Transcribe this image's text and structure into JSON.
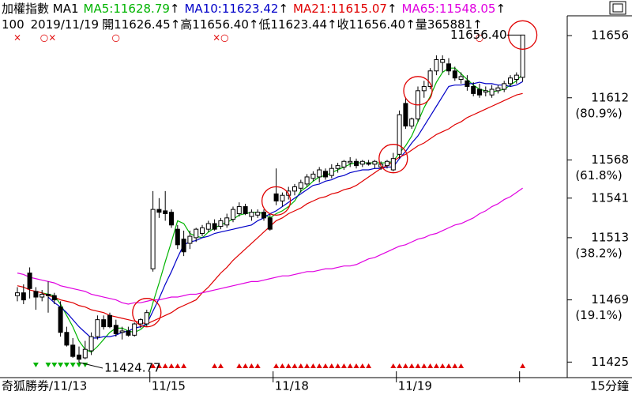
{
  "header": {
    "index_name": "加權指數 MA1",
    "separator": ":",
    "arrow": "↑",
    "time": "100",
    "date": "2019/11/19",
    "labels": {
      "open": "開",
      "high": "高",
      "low": "低",
      "close": "收",
      "volume": "量"
    },
    "volume": 365881
  },
  "chart_data": {
    "type": "candlestick",
    "candles": [
      [
        11472,
        11478,
        11468,
        11474
      ],
      [
        11474,
        11480,
        11466,
        11469
      ],
      [
        11488,
        11492,
        11470,
        11477
      ],
      [
        11475,
        11478,
        11462,
        11471
      ],
      [
        11471,
        11476,
        11468,
        11473
      ],
      [
        11473,
        11482,
        11460,
        11472
      ],
      [
        11472,
        11474,
        11466,
        11469
      ],
      [
        11464,
        11468,
        11443,
        11446
      ],
      [
        11446,
        11450,
        11436,
        11437
      ],
      [
        11437,
        11442,
        11428,
        11429
      ],
      [
        11430,
        11436,
        11424.77,
        11427
      ],
      [
        11428,
        11440,
        11427,
        11434
      ],
      [
        11433,
        11446,
        11430,
        11443
      ],
      [
        11443,
        11458,
        11441,
        11455
      ],
      [
        11455,
        11458,
        11448,
        11450
      ],
      [
        11458,
        11460,
        11449,
        11450
      ],
      [
        11451,
        11455,
        11443,
        11445
      ],
      [
        11446,
        11450,
        11441,
        11447
      ],
      [
        11447,
        11450,
        11443,
        11444
      ],
      [
        11444,
        11453,
        11443,
        11452
      ],
      [
        11452,
        11456,
        11449,
        11455
      ],
      [
        11452,
        11462,
        11450,
        11460
      ],
      [
        11491,
        11546,
        11489,
        11533
      ],
      [
        11533,
        11541,
        11527,
        11531
      ],
      [
        11532,
        11546,
        11525,
        11530
      ],
      [
        11531,
        11533,
        11520,
        11522
      ],
      [
        11519,
        11522,
        11505,
        11508
      ],
      [
        11512,
        11518,
        11500,
        11503
      ],
      [
        11509,
        11518,
        11505,
        11514
      ],
      [
        11513,
        11520,
        11510,
        11519
      ],
      [
        11516,
        11522,
        11514,
        11520
      ],
      [
        11519,
        11525,
        11517,
        11523
      ],
      [
        11523,
        11526,
        11518,
        11519
      ],
      [
        11521,
        11527,
        11519,
        11525
      ],
      [
        11522,
        11530,
        11520,
        11527
      ],
      [
        11526,
        11535,
        11524,
        11533
      ],
      [
        11530,
        11538,
        11528,
        11535
      ],
      [
        11535,
        11537,
        11529,
        11530
      ],
      [
        11528,
        11533,
        11525,
        11531
      ],
      [
        11529,
        11533,
        11527,
        11531
      ],
      [
        11531,
        11533,
        11525,
        11527
      ],
      [
        11527,
        11530,
        11518,
        11519
      ],
      [
        11544,
        11562,
        11536,
        11539
      ],
      [
        11539,
        11545,
        11535,
        11543
      ],
      [
        11543,
        11549,
        11540,
        11546
      ],
      [
        11546,
        11551,
        11543,
        11549
      ],
      [
        11548,
        11554,
        11545,
        11552
      ],
      [
        11551,
        11558,
        11549,
        11556
      ],
      [
        11555,
        11560,
        11553,
        11558
      ],
      [
        11556,
        11563,
        11552,
        11561
      ],
      [
        11560,
        11562,
        11554,
        11556
      ],
      [
        11557,
        11565,
        11555,
        11562
      ],
      [
        11562,
        11566,
        11559,
        11564
      ],
      [
        11563,
        11568,
        11561,
        11567
      ],
      [
        11566,
        11570,
        11563,
        11567
      ],
      [
        11567,
        11569,
        11562,
        11564
      ],
      [
        11565,
        11568,
        11563,
        11567
      ],
      [
        11566,
        11568,
        11564,
        11565
      ],
      [
        11565,
        11568,
        11562,
        11567
      ],
      [
        11563,
        11567,
        11561,
        11565
      ],
      [
        11564,
        11568,
        11562,
        11567
      ],
      [
        11561,
        11573,
        11560,
        11569
      ],
      [
        11572,
        11603,
        11569,
        11600
      ],
      [
        11608,
        11612,
        11590,
        11592
      ],
      [
        11592,
        11598,
        11590,
        11597
      ],
      [
        11597,
        11620,
        11595,
        11617
      ],
      [
        11617,
        11624,
        11612,
        11620
      ],
      [
        11620,
        11633,
        11618,
        11631
      ],
      [
        11631,
        11642,
        11628,
        11639
      ],
      [
        11637,
        11642,
        11630,
        11639
      ],
      [
        11636,
        11640,
        11628,
        11631
      ],
      [
        11631,
        11634,
        11624,
        11626
      ],
      [
        11625,
        11630,
        11622,
        11627
      ],
      [
        11624,
        11628,
        11617,
        11620
      ],
      [
        11620,
        11623,
        11613,
        11615
      ],
      [
        11618,
        11622,
        11612,
        11614
      ],
      [
        11616,
        11620,
        11613,
        11617
      ],
      [
        11614,
        11621,
        11612,
        11618
      ],
      [
        11617,
        11621,
        11615,
        11619
      ],
      [
        11618,
        11624,
        11616,
        11622
      ],
      [
        11622,
        11628,
        11620,
        11626
      ],
      [
        11625,
        11630,
        11622,
        11628
      ],
      [
        11626.45,
        11656.4,
        11623.44,
        11656.4
      ]
    ],
    "candle_value_labels": {
      "82": [
        "11626.45",
        "11656.40",
        "11623.44",
        "11656.40"
      ]
    },
    "series": [
      {
        "name": "MA5",
        "color": "#00b400",
        "values": [
          null,
          null,
          null,
          null,
          11474,
          11473,
          11472,
          11466,
          11458,
          11450,
          11440,
          11434,
          11432,
          11436,
          11441,
          11446,
          11449,
          11449,
          11447,
          11446,
          11448,
          11452,
          11467,
          11481,
          11496,
          11510,
          11525,
          11523,
          11516,
          11514,
          11513,
          11517,
          11520,
          11522,
          11524,
          11526,
          11529,
          11530,
          11531,
          11531,
          11530,
          11527,
          11530,
          11532,
          11535,
          11539,
          11546,
          11549,
          11553,
          11556,
          11557,
          11559,
          11561,
          11563,
          11565,
          11566,
          11566,
          11566,
          11566,
          11566,
          11566,
          11567,
          11573,
          11578,
          11585,
          11595,
          11605,
          11613,
          11623,
          11630,
          11633,
          11633,
          11629,
          11625,
          11621,
          11618,
          11617,
          11616,
          11617,
          11618,
          11621,
          11624,
          11628.79
        ]
      },
      {
        "name": "MA10",
        "color": "#0000c8",
        "values": [
          null,
          null,
          null,
          null,
          null,
          11471,
          11467,
          11464,
          11460,
          11455,
          11450,
          11446,
          11442,
          11442,
          11443,
          11443,
          11444,
          11446,
          11447,
          11449,
          11450,
          11452,
          11461,
          11470,
          11480,
          11489,
          11499,
          11508,
          11510,
          11511,
          11513,
          11514,
          11516,
          11517,
          11518,
          11519,
          11520,
          11521,
          11522,
          11525,
          11527,
          11530,
          11532,
          11535,
          11538,
          11541,
          11544,
          11547,
          11550,
          11551,
          11553,
          11554,
          11556,
          11557,
          11559,
          11560,
          11561,
          11561,
          11562,
          11562,
          11563,
          11563,
          11569,
          11574,
          11580,
          11585,
          11592,
          11599,
          11606,
          11613,
          11620,
          11621,
          11621,
          11622,
          11622,
          11623,
          11622,
          11622,
          11621,
          11621,
          11620,
          11621,
          11623.42
        ]
      },
      {
        "name": "MA21",
        "color": "#e00000",
        "values": [
          11479,
          11478,
          11476,
          11475,
          11474,
          11472,
          11471,
          11469,
          11468,
          11467,
          11465,
          11464,
          11462,
          11461,
          11460,
          11458,
          11457,
          11456,
          11455,
          11454,
          11453,
          11452,
          11454,
          11456,
          11458,
          11460,
          11463,
          11465,
          11467,
          11469,
          11474,
          11478,
          11483,
          11488,
          11492,
          11497,
          11501,
          11505,
          11509,
          11513,
          11517,
          11521,
          11525,
          11527,
          11530,
          11532,
          11534,
          11537,
          11539,
          11541,
          11542,
          11544,
          11545,
          11547,
          11548,
          11550,
          11553,
          11556,
          11559,
          11562,
          11564,
          11567,
          11570,
          11572,
          11575,
          11578,
          11580,
          11583,
          11586,
          11588,
          11590,
          11593,
          11595,
          11598,
          11600,
          11602,
          11604,
          11606,
          11608,
          11610,
          11612,
          11614,
          11615.07
        ]
      },
      {
        "name": "MA65",
        "color": "#e000e0",
        "values": [
          11488,
          11487,
          11485,
          11484,
          11483,
          11482,
          11481,
          11479,
          11478,
          11477,
          11476,
          11475,
          11473,
          11472,
          11471,
          11470,
          11469,
          11467,
          11466,
          11467,
          11467,
          11468,
          11469,
          11469,
          11470,
          11471,
          11471,
          11472,
          11473,
          11473,
          11474,
          11475,
          11476,
          11477,
          11478,
          11479,
          11480,
          11481,
          11482,
          11482,
          11483,
          11484,
          11485,
          11486,
          11486,
          11487,
          11488,
          11489,
          11489,
          11490,
          11491,
          11491,
          11492,
          11493,
          11493,
          11494,
          11496,
          11498,
          11499,
          11501,
          11503,
          11505,
          11507,
          11508,
          11510,
          11512,
          11513,
          11515,
          11516,
          11518,
          11520,
          11522,
          11523,
          11525,
          11527,
          11530,
          11532,
          11535,
          11537,
          11540,
          11542,
          11545,
          11548.05
        ]
      }
    ],
    "ylim": [
      11414,
      11670
    ],
    "yticks": [
      11656,
      11612,
      11568,
      11541,
      11513,
      11469,
      11425
    ],
    "fib_levels": [
      {
        "value": 11612,
        "label": "(80.9%)"
      },
      {
        "value": 11568,
        "label": "(61.8%)"
      },
      {
        "value": 11513,
        "label": "(38.2%)"
      },
      {
        "value": 11469,
        "label": "(19.1%)"
      }
    ],
    "sessions": [
      {
        "start": 0,
        "label": "奇狐勝券/11/13"
      },
      {
        "start": 22,
        "label": "11/15"
      },
      {
        "start": 42,
        "label": "11/18"
      },
      {
        "start": 62,
        "label": "11/19"
      },
      {
        "start": 82,
        "label": null
      }
    ],
    "period": "15分鐘",
    "signals": [
      {
        "candle": 0,
        "text": "×"
      },
      {
        "candle": 5,
        "text": "○×"
      },
      {
        "candle": 16,
        "text": "○"
      },
      {
        "candle": 33,
        "text": "×○"
      },
      {
        "candle": 75,
        "text": "○"
      }
    ],
    "down_marks": [
      3,
      5,
      6,
      7,
      8,
      9,
      10,
      11
    ],
    "up_marks": [
      22,
      23,
      24,
      25,
      26,
      27,
      32,
      33,
      36,
      37,
      38,
      39,
      42,
      43,
      44,
      45,
      46,
      47,
      48,
      49,
      50,
      51,
      52,
      53,
      54,
      55,
      56,
      57,
      61,
      62,
      63,
      64,
      65,
      66,
      67,
      68,
      69,
      70,
      71,
      72,
      82
    ],
    "circles": [
      21,
      42,
      61,
      65,
      82
    ],
    "grid": false
  }
}
